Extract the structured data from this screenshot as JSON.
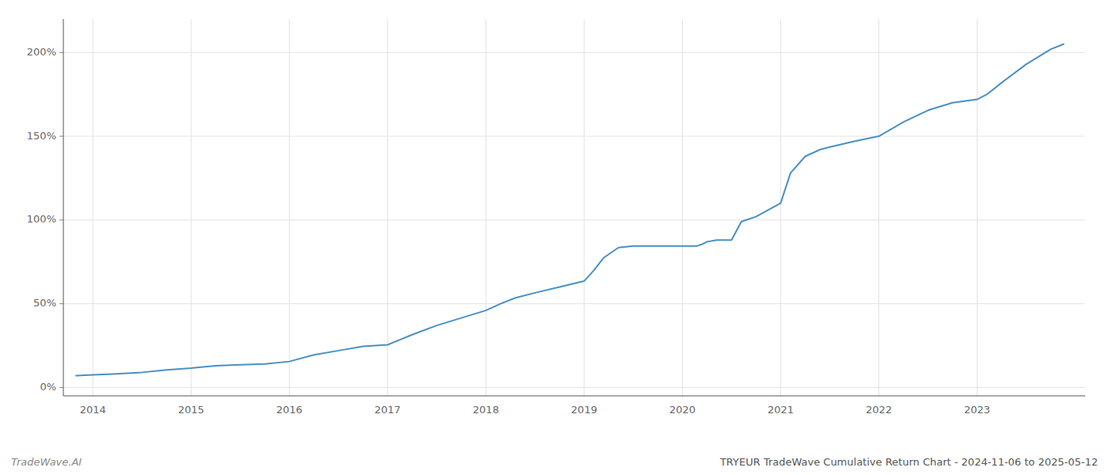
{
  "chart_data": {
    "type": "line",
    "title": "TRYEUR TradeWave Cumulative Return Chart - 2024-11-06 to 2025-05-12",
    "annotations": [
      "TradeWave.AI"
    ],
    "color": "#4a90c4",
    "grid": true,
    "x": [
      2013.83,
      2014.0,
      2014.2,
      2014.5,
      2014.75,
      2015.0,
      2015.25,
      2015.5,
      2015.75,
      2016.0,
      2016.25,
      2016.5,
      2016.75,
      2017.0,
      2017.25,
      2017.5,
      2017.75,
      2018.0,
      2018.15,
      2018.3,
      2018.5,
      2018.75,
      2019.0,
      2019.1,
      2019.2,
      2019.35,
      2019.5,
      2019.75,
      2020.0,
      2020.15,
      2020.2,
      2020.25,
      2020.35,
      2020.5,
      2020.6,
      2020.75,
      2021.0,
      2021.1,
      2021.25,
      2021.4,
      2021.5,
      2021.75,
      2022.0,
      2022.25,
      2022.5,
      2022.75,
      2023.0,
      2023.1,
      2023.25,
      2023.5,
      2023.75,
      2023.88
    ],
    "values": [
      0.07,
      0.075,
      0.08,
      0.09,
      0.105,
      0.115,
      0.13,
      0.135,
      0.14,
      0.155,
      0.195,
      0.22,
      0.245,
      0.255,
      0.315,
      0.37,
      0.415,
      0.46,
      0.5,
      0.535,
      0.565,
      0.6,
      0.635,
      0.7,
      0.775,
      0.835,
      0.845,
      0.845,
      0.845,
      0.845,
      0.855,
      0.87,
      0.88,
      0.88,
      0.99,
      1.02,
      1.1,
      1.28,
      1.38,
      1.42,
      1.435,
      1.47,
      1.5,
      1.585,
      1.655,
      1.7,
      1.72,
      1.75,
      1.82,
      1.93,
      2.02,
      2.05
    ],
    "xlim": [
      2013.7,
      2024.1
    ],
    "xticks": [
      2014,
      2015,
      2016,
      2017,
      2018,
      2019,
      2020,
      2021,
      2022,
      2023
    ],
    "ylim": [
      -0.05,
      2.2
    ],
    "yticks": [
      {
        "value": 0.0,
        "label": "0%"
      },
      {
        "value": 0.5,
        "label": "50%"
      },
      {
        "value": 1.0,
        "label": "100%"
      },
      {
        "value": 1.5,
        "label": "150%"
      },
      {
        "value": 2.0,
        "label": "200%"
      }
    ]
  }
}
